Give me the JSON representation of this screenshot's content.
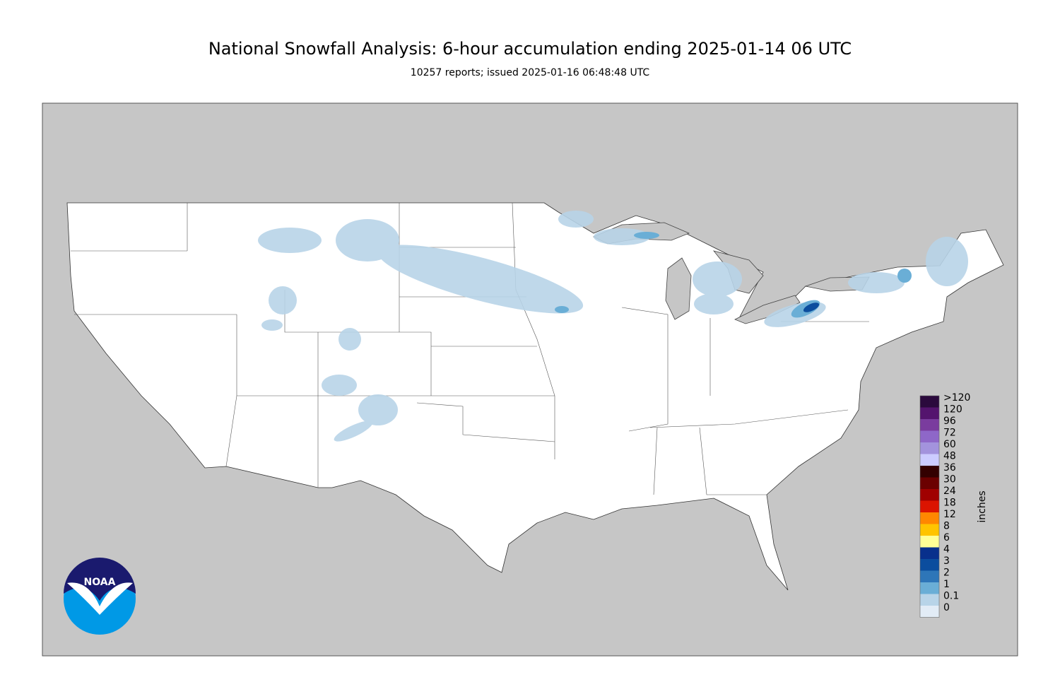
{
  "header": {
    "title": "National Snowfall Analysis: 6-hour accumulation ending 2025-01-14 06 UTC",
    "subtitle": "10257 reports; issued 2025-01-16 06:48:48 UTC"
  },
  "legend": {
    "label": "inches",
    "bins": [
      {
        "label": ">120",
        "color": "#2b0a3d"
      },
      {
        "label": "120",
        "color": "#54146e"
      },
      {
        "label": "96",
        "color": "#7a3c9e"
      },
      {
        "label": "72",
        "color": "#8e67c8"
      },
      {
        "label": "60",
        "color": "#a393dd"
      },
      {
        "label": "48",
        "color": "#ccccff"
      },
      {
        "label": "36",
        "color": "#330000"
      },
      {
        "label": "30",
        "color": "#6b0000"
      },
      {
        "label": "24",
        "color": "#a00000"
      },
      {
        "label": "18",
        "color": "#db1400"
      },
      {
        "label": "12",
        "color": "#ff8700"
      },
      {
        "label": "8",
        "color": "#ffc400"
      },
      {
        "label": "6",
        "color": "#ffff96"
      },
      {
        "label": "4",
        "color": "#08308c"
      },
      {
        "label": "3",
        "color": "#0b4d9e"
      },
      {
        "label": "2",
        "color": "#2e76b8"
      },
      {
        "label": "1",
        "color": "#6aaed6"
      },
      {
        "label": "0.1",
        "color": "#b8d4e8"
      },
      {
        "label": "0",
        "color": "#e2ecf6"
      }
    ],
    "base_color": "#ffffff"
  },
  "logo": {
    "text": "NOAA"
  }
}
